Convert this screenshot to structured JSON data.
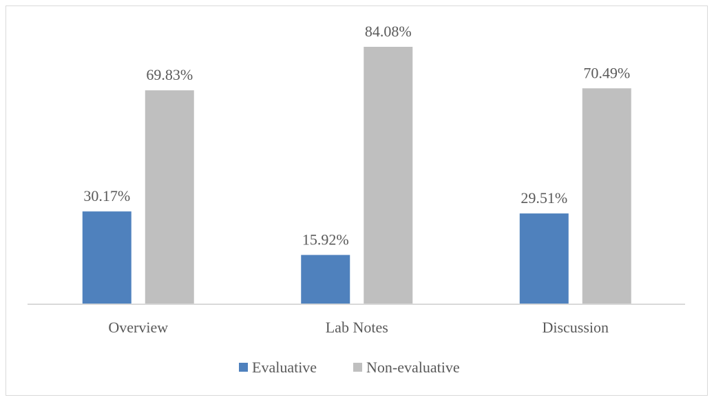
{
  "chart_data": {
    "type": "bar",
    "title": "",
    "xlabel": "",
    "ylabel": "",
    "categories": [
      "Overview",
      "Lab Notes",
      "Discussion"
    ],
    "series": [
      {
        "name": "Evaluative",
        "values": [
          30.17,
          15.92,
          29.51
        ],
        "labels": [
          "30.17%",
          "15.92%",
          "29.51%"
        ],
        "color": "#4F81BD"
      },
      {
        "name": "Non-evaluative",
        "values": [
          69.83,
          84.08,
          70.49
        ],
        "labels": [
          "69.83%",
          "84.08%",
          "70.49%"
        ],
        "color": "#BFBFBF"
      }
    ],
    "ylim": [
      0,
      84.08
    ],
    "grid": false,
    "legend": "bottom",
    "axis_color": "#D9D9D9",
    "text_color": "#595959"
  }
}
